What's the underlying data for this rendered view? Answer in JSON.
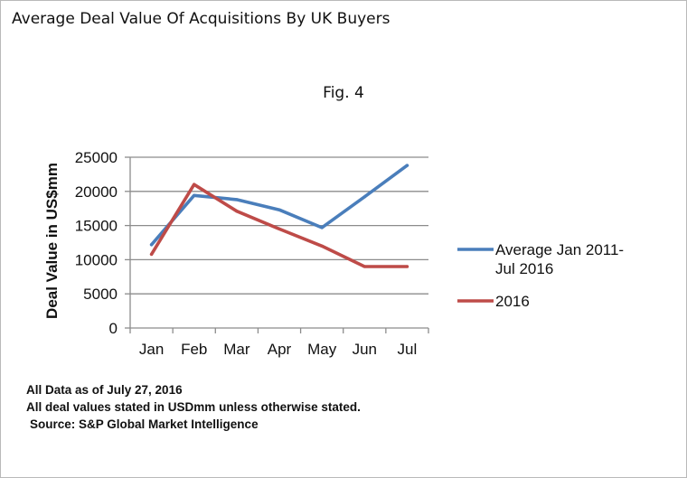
{
  "title": "Average Deal Value Of Acquisitions By UK Buyers",
  "figure_label": "Fig. 4",
  "chart_data": {
    "type": "line",
    "categories": [
      "Jan",
      "Feb",
      "Mar",
      "Apr",
      "May",
      "Jun",
      "Jul"
    ],
    "series": [
      {
        "name": "Average Jan 2011-Jul 2016",
        "legend_lines": [
          "Average Jan 2011-",
          "Jul 2016"
        ],
        "color": "#4a7ebb",
        "values": [
          12200,
          19400,
          18800,
          17300,
          14700,
          19200,
          23800
        ]
      },
      {
        "name": "2016",
        "legend_lines": [
          "2016"
        ],
        "color": "#be4b48",
        "values": [
          10800,
          21000,
          17100,
          14500,
          12000,
          9000,
          9000
        ]
      }
    ],
    "xlabel": "",
    "ylabel": "Deal Value in US$mm",
    "ylim": [
      0,
      25000
    ],
    "yticks": [
      0,
      5000,
      10000,
      15000,
      20000,
      25000
    ],
    "grid": true,
    "legend": "right"
  },
  "footnotes": {
    "line1": "All Data as of July 27, 2016",
    "line2": "All deal values stated in USDmm unless otherwise stated.",
    "source": "Source: S&P Global Market Intelligence"
  }
}
